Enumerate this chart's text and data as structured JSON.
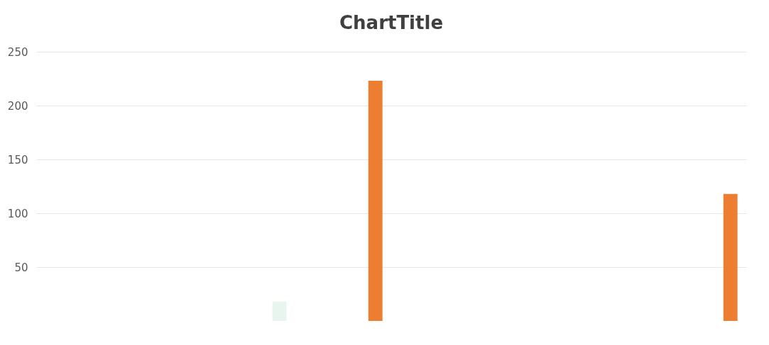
{
  "chart_data": {
    "type": "bar",
    "title": "ChartTitle",
    "categories": [
      null,
      null
    ],
    "series": [
      {
        "color": "#e8f5ee",
        "values": [
          18,
          null
        ]
      },
      {
        "color": "#ed7d31",
        "values": [
          223,
          118
        ]
      }
    ],
    "ylim": [
      0,
      250
    ],
    "yticks": [
      50,
      100,
      150,
      200,
      250
    ],
    "grid": "y",
    "tick_labels": "y",
    "legend": false
  }
}
